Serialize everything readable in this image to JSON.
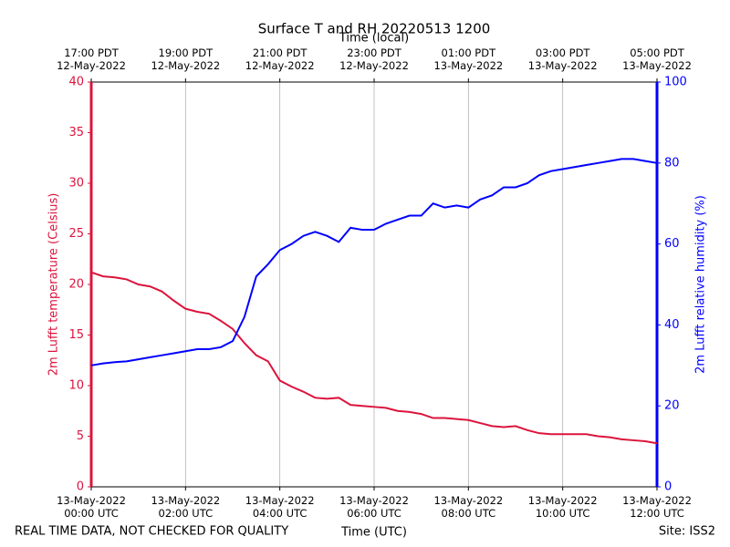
{
  "chart_data": {
    "type": "line",
    "title": "Surface T and RH 20220513 1200",
    "xlabel": "Time (UTC)",
    "x2label": "Time (local)",
    "ylabel": "2m Lufft temperature (Celsius)",
    "y2label": "2m Lufft relative humidity (%)",
    "note": "REAL TIME DATA, NOT CHECKED FOR QUALITY",
    "site": "Site: ISS2",
    "grid": true,
    "xlim": [
      0,
      12
    ],
    "xticks": [
      {
        "value": 0,
        "label": "13-May-2022\n00:00 UTC"
      },
      {
        "value": 2,
        "label": "13-May-2022\n02:00 UTC"
      },
      {
        "value": 4,
        "label": "13-May-2022\n04:00 UTC"
      },
      {
        "value": 6,
        "label": "13-May-2022\n06:00 UTC"
      },
      {
        "value": 8,
        "label": "13-May-2022\n08:00 UTC"
      },
      {
        "value": 10,
        "label": "13-May-2022\n10:00 UTC"
      },
      {
        "value": 12,
        "label": "13-May-2022\n12:00 UTC"
      }
    ],
    "x2ticks": [
      {
        "value": 0,
        "label": "17:00 PDT\n12-May-2022"
      },
      {
        "value": 2,
        "label": "19:00 PDT\n12-May-2022"
      },
      {
        "value": 4,
        "label": "21:00 PDT\n12-May-2022"
      },
      {
        "value": 6,
        "label": "23:00 PDT\n12-May-2022"
      },
      {
        "value": 8,
        "label": "01:00 PDT\n13-May-2022"
      },
      {
        "value": 10,
        "label": "03:00 PDT\n13-May-2022"
      },
      {
        "value": 12,
        "label": "05:00 PDT\n13-May-2022"
      }
    ],
    "ylim": [
      0,
      40
    ],
    "yticks": [
      0,
      5,
      10,
      15,
      20,
      25,
      30,
      35,
      40
    ],
    "ycolor": "#dc143c",
    "y2lim": [
      0,
      100
    ],
    "y2ticks": [
      0,
      20,
      40,
      60,
      80,
      100
    ],
    "y2color": "#0000ff",
    "x": [
      0,
      0.25,
      0.5,
      0.75,
      1,
      1.25,
      1.5,
      1.75,
      2,
      2.25,
      2.5,
      2.75,
      3,
      3.25,
      3.5,
      3.75,
      4,
      4.25,
      4.5,
      4.75,
      5,
      5.25,
      5.5,
      5.75,
      6,
      6.25,
      6.5,
      6.75,
      7,
      7.25,
      7.5,
      7.75,
      8,
      8.25,
      8.5,
      8.75,
      9,
      9.25,
      9.5,
      9.75,
      10,
      10.25,
      10.5,
      10.75,
      11,
      11.25,
      11.5,
      11.75,
      12
    ],
    "series": [
      {
        "name": "2m Lufft temperature",
        "color": "#dc143c",
        "axis": "y",
        "values": [
          21.2,
          20.8,
          20.7,
          20.5,
          20.0,
          19.8,
          19.3,
          18.4,
          17.6,
          17.3,
          17.1,
          16.4,
          15.6,
          14.2,
          13.0,
          12.4,
          10.5,
          9.9,
          9.4,
          8.8,
          8.7,
          8.8,
          8.1,
          8.0,
          7.9,
          7.8,
          7.5,
          7.4,
          7.2,
          6.8,
          6.8,
          6.7,
          6.6,
          6.3,
          6.0,
          5.9,
          6.0,
          5.6,
          5.3,
          5.2,
          5.2,
          5.2,
          5.2,
          5.0,
          4.9,
          4.7,
          4.6,
          4.5,
          4.3
        ]
      },
      {
        "name": "2m Lufft relative humidity",
        "color": "#0000ff",
        "axis": "y2",
        "values": [
          30,
          30.5,
          30.8,
          31,
          31.5,
          32,
          32.5,
          33,
          33.5,
          34,
          34,
          34.5,
          36,
          42,
          52,
          55,
          58.5,
          60,
          62,
          63,
          62,
          60.5,
          64,
          63.5,
          63.5,
          65,
          66,
          67,
          67,
          70,
          69,
          69.5,
          69,
          71,
          72,
          74,
          74,
          75,
          77,
          78,
          78.5,
          79,
          79.5,
          80,
          80.5,
          81,
          81,
          80.5,
          80
        ]
      }
    ]
  }
}
